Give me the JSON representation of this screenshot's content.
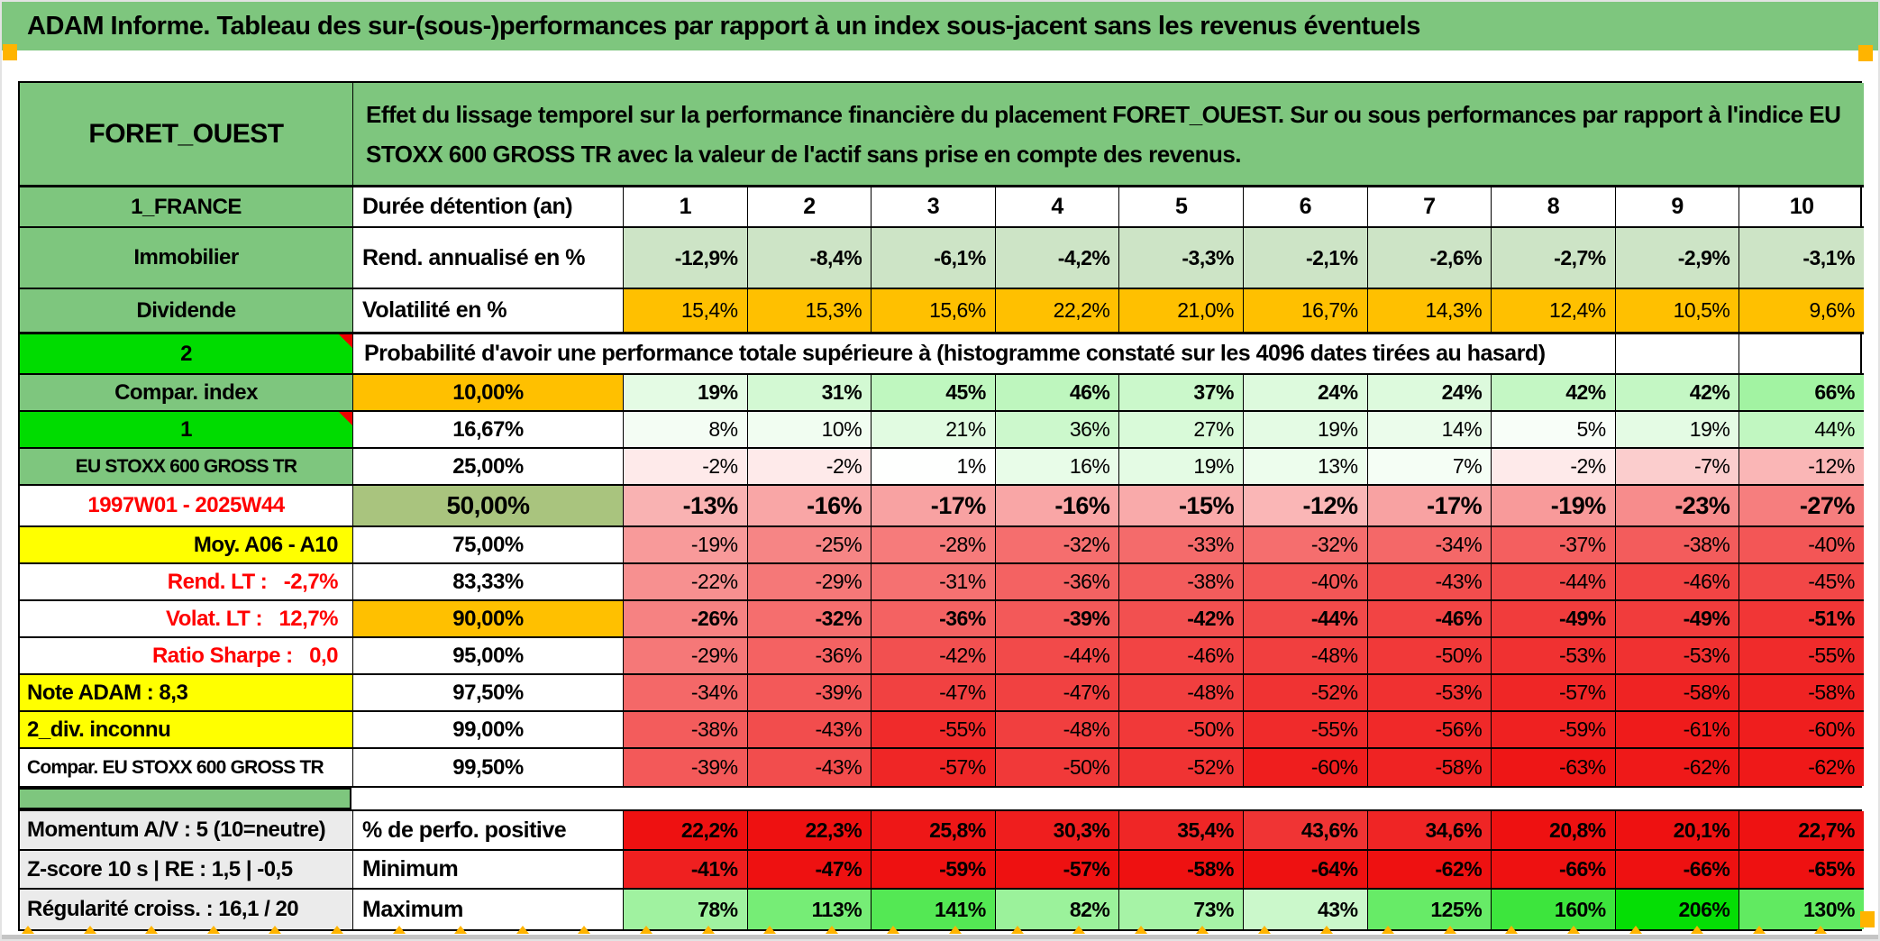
{
  "title": "ADAM Informe. Tableau des sur-(sous-)performances par rapport à un index sous-jacent sans les revenus éventuels",
  "header": {
    "asset": "FORET_OUEST",
    "description": "Effet du lissage temporel sur la performance financière du placement FORET_OUEST. Sur ou sous performances par rapport à l'indice EU STOXX 600 GROSS TR avec la valeur de l'actif sans prise en compte des revenus."
  },
  "asset_block": {
    "duree_row": {
      "id": "duree",
      "label": "1_FRANCE",
      "col2": "Durée détention (an)",
      "cells": [
        "1",
        "2",
        "3",
        "4",
        "5",
        "6",
        "7",
        "8",
        "9",
        "10"
      ]
    },
    "rendement_row": {
      "id": "rendement",
      "label": "Immobilier",
      "col2": "Rend. annualisé en %",
      "cells": [
        "-12,9%",
        "-8,4%",
        "-6,1%",
        "-4,2%",
        "-3,3%",
        "-2,1%",
        "-2,6%",
        "-2,7%",
        "-2,9%",
        "-3,1%"
      ]
    },
    "volatilite_row": {
      "id": "volatilite",
      "label": "Dividende",
      "col2": "Volatilité en %",
      "cells": [
        "15,4%",
        "15,3%",
        "15,6%",
        "22,2%",
        "21,0%",
        "16,7%",
        "14,3%",
        "12,4%",
        "10,5%",
        "9,6%"
      ]
    }
  },
  "prob_block": {
    "header": {
      "label": "2",
      "text": "Probabilité d'avoir une performance totale supérieure à (histogramme constaté sur les 4096 dates tirées au hasard)"
    },
    "rows": [
      {
        "id": "p10",
        "label": "Compar. index",
        "label_cls": "green",
        "flag": false,
        "threshold": "10,00%",
        "thr_cls": "orange",
        "bold": true,
        "big": false,
        "cells": [
          "19%",
          "31%",
          "45%",
          "46%",
          "37%",
          "24%",
          "24%",
          "42%",
          "42%",
          "66%"
        ]
      },
      {
        "id": "p16",
        "label": "1",
        "label_cls": "bright",
        "flag": true,
        "threshold": "16,67%",
        "thr_cls": "",
        "bold": false,
        "big": false,
        "cells": [
          "8%",
          "10%",
          "21%",
          "36%",
          "27%",
          "19%",
          "14%",
          "5%",
          "19%",
          "44%"
        ]
      },
      {
        "id": "p25",
        "label": "EU STOXX 600 GROSS TR",
        "label_cls": "green sm",
        "flag": false,
        "threshold": "25,00%",
        "thr_cls": "",
        "bold": false,
        "big": false,
        "cells": [
          "-2%",
          "-2%",
          "1%",
          "16%",
          "19%",
          "13%",
          "7%",
          "-2%",
          "-7%",
          "-12%"
        ]
      },
      {
        "id": "p50",
        "label": "1997W01 - 2025W44",
        "label_cls": "redtx",
        "flag": false,
        "threshold": "50,00%",
        "thr_cls": "sage big",
        "bold": true,
        "big": true,
        "cells": [
          "-13%",
          "-16%",
          "-17%",
          "-16%",
          "-15%",
          "-12%",
          "-17%",
          "-19%",
          "-23%",
          "-27%"
        ]
      },
      {
        "id": "p75",
        "label": "Moy. A06 - A10",
        "label_cls": "yellow right",
        "flag": false,
        "threshold": "75,00%",
        "thr_cls": "",
        "bold": false,
        "big": false,
        "cells": [
          "-19%",
          "-25%",
          "-28%",
          "-32%",
          "-33%",
          "-32%",
          "-34%",
          "-37%",
          "-38%",
          "-40%"
        ]
      },
      {
        "id": "p83",
        "label": "Rend. LT :   -2,7%",
        "label_cls": "redtx right",
        "flag": false,
        "threshold": "83,33%",
        "thr_cls": "",
        "bold": false,
        "big": false,
        "cells": [
          "-22%",
          "-29%",
          "-31%",
          "-36%",
          "-38%",
          "-40%",
          "-43%",
          "-44%",
          "-46%",
          "-45%"
        ]
      },
      {
        "id": "p90",
        "label": "Volat. LT :   12,7%",
        "label_cls": "redtx right",
        "flag": false,
        "threshold": "90,00%",
        "thr_cls": "orange",
        "bold": true,
        "big": false,
        "cells": [
          "-26%",
          "-32%",
          "-36%",
          "-39%",
          "-42%",
          "-44%",
          "-46%",
          "-49%",
          "-49%",
          "-51%"
        ]
      },
      {
        "id": "p95",
        "label": "Ratio Sharpe :   0,0",
        "label_cls": "redtx right",
        "flag": false,
        "threshold": "95,00%",
        "thr_cls": "",
        "bold": false,
        "big": false,
        "cells": [
          "-29%",
          "-36%",
          "-42%",
          "-44%",
          "-46%",
          "-48%",
          "-50%",
          "-53%",
          "-53%",
          "-55%"
        ]
      },
      {
        "id": "p97",
        "label": "Note ADAM : 8,3",
        "label_cls": "yellow left",
        "flag": false,
        "threshold": "97,50%",
        "thr_cls": "",
        "bold": false,
        "big": false,
        "cells": [
          "-34%",
          "-39%",
          "-47%",
          "-47%",
          "-48%",
          "-52%",
          "-53%",
          "-57%",
          "-58%",
          "-58%"
        ]
      },
      {
        "id": "p99",
        "label": "2_div. inconnu",
        "label_cls": "yellow left",
        "flag": false,
        "threshold": "99,00%",
        "thr_cls": "",
        "bold": false,
        "big": false,
        "cells": [
          "-38%",
          "-43%",
          "-55%",
          "-48%",
          "-50%",
          "-55%",
          "-56%",
          "-59%",
          "-61%",
          "-60%"
        ]
      },
      {
        "id": "p995",
        "label": "Compar. EU STOXX 600 GROSS TR",
        "label_cls": "sm left",
        "flag": false,
        "threshold": "99,50%",
        "thr_cls": "",
        "bold": false,
        "big": false,
        "cells": [
          "-39%",
          "-43%",
          "-57%",
          "-50%",
          "-52%",
          "-60%",
          "-58%",
          "-63%",
          "-62%",
          "-62%"
        ]
      }
    ]
  },
  "bottom_block": {
    "rows": [
      {
        "id": "perfo",
        "label": "Momentum A/V : 5 (10=neutre)",
        "col2": "% de perfo. positive",
        "scale": "perfo",
        "cells": [
          "22,2%",
          "22,3%",
          "25,8%",
          "30,3%",
          "35,4%",
          "43,6%",
          "34,6%",
          "20,8%",
          "20,1%",
          "22,7%"
        ]
      },
      {
        "id": "minimum",
        "label": "Z-score 10 s | RE : 1,5 | -0,5",
        "col2": "Minimum",
        "scale": "minimum",
        "cells": [
          "-41%",
          "-47%",
          "-59%",
          "-57%",
          "-58%",
          "-64%",
          "-62%",
          "-66%",
          "-66%",
          "-65%"
        ]
      },
      {
        "id": "maximum",
        "label": "Régularité croiss. : 16,1 / 20",
        "col2": "Maximum",
        "scale": "maximum",
        "cells": [
          "78%",
          "113%",
          "141%",
          "82%",
          "73%",
          "43%",
          "125%",
          "160%",
          "206%",
          "130%"
        ]
      }
    ]
  },
  "scales": {
    "colors": {
      "white": [
        255,
        255,
        255
      ],
      "red": [
        238,
        17,
        17
      ],
      "green": [
        0,
        221,
        0
      ]
    },
    "prob": {
      "pos": 180,
      "neg": 65,
      "negExp": 0.7
    },
    "maximum": {
      "pos": 210,
      "neg": 65,
      "negExp": 0.7
    },
    "minimum": {
      "pos": 200,
      "neg": 45,
      "negExp": 0.7
    },
    "perfo": {
      "base": 22,
      "range": 80
    }
  },
  "palette": {
    "green": "#7EC67E",
    "bright_green": "#00DC00",
    "orange": "#FFC000",
    "sage": "#A9C47E",
    "yellow": "#FFFF00",
    "gray": "#EBEBEB",
    "soft_green_row": "#CDE4C6",
    "red_text": "#FF0000",
    "marker_orange": "#FFB400"
  }
}
